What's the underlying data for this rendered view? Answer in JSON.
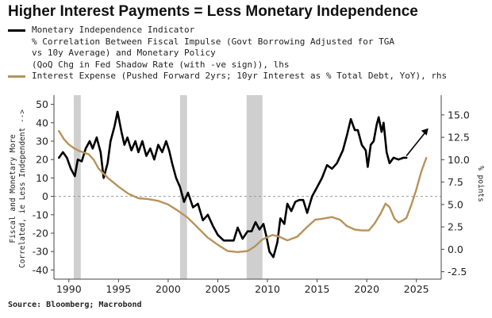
{
  "chart_data": {
    "type": "line",
    "title": "Higher Interest Payments = Less Monetary Independence",
    "source": "Source: Bloomberg; Macrobond",
    "x_ticks": [
      1990,
      1995,
      2000,
      2005,
      2010,
      2015,
      2020,
      2025
    ],
    "xlim": [
      1988.5,
      2027.5
    ],
    "left_axis": {
      "label_line1": "Fiscal and Monetary More",
      "label_line2": "Correlated, ie Less Independent -->",
      "ticks": [
        50,
        40,
        30,
        20,
        10,
        0,
        -10,
        -20,
        -30,
        -40
      ],
      "ylim": [
        -45,
        55
      ]
    },
    "right_axis": {
      "label": "% points",
      "ticks": [
        "15.0",
        "12.5",
        "10.0",
        "7.5",
        "5.0",
        "2.5",
        "0.0",
        "-2.5"
      ],
      "tick_values": [
        15,
        12.5,
        10,
        7.5,
        5,
        2.5,
        0,
        -2.5
      ],
      "ylim": [
        -3.33,
        17.2
      ]
    },
    "shaded_periods": [
      [
        1990.5,
        1991.2
      ],
      [
        2001.2,
        2001.9
      ],
      [
        2007.9,
        2009.5
      ]
    ],
    "series": [
      {
        "name": "Monetary Independence Indicator",
        "legend_lines": [
          "Monetary Independence Indicator",
          "% Correlation Between Fiscal Impulse (Govt Borrowing Adjusted for TGA",
          "vs 10y Average) and Monetary Policy",
          "(QoQ Chg in Fed Shadow Rate (with -ve sign)), lhs"
        ],
        "axis": "left",
        "color": "#000000",
        "points": [
          [
            1989.0,
            21
          ],
          [
            1989.4,
            24
          ],
          [
            1989.8,
            21
          ],
          [
            1990.2,
            15
          ],
          [
            1990.6,
            11
          ],
          [
            1990.9,
            20
          ],
          [
            1991.3,
            19
          ],
          [
            1991.7,
            26
          ],
          [
            1992.1,
            30
          ],
          [
            1992.4,
            26
          ],
          [
            1992.8,
            32
          ],
          [
            1993.2,
            24
          ],
          [
            1993.5,
            10
          ],
          [
            1993.9,
            18
          ],
          [
            1994.2,
            30
          ],
          [
            1994.6,
            38
          ],
          [
            1994.9,
            46
          ],
          [
            1995.3,
            35
          ],
          [
            1995.6,
            28
          ],
          [
            1995.9,
            32
          ],
          [
            1996.3,
            25
          ],
          [
            1996.7,
            30
          ],
          [
            1997.0,
            24
          ],
          [
            1997.4,
            30
          ],
          [
            1997.8,
            22
          ],
          [
            1998.2,
            26
          ],
          [
            1998.6,
            20
          ],
          [
            1999.0,
            28
          ],
          [
            1999.4,
            24
          ],
          [
            1999.8,
            30
          ],
          [
            2000.1,
            25
          ],
          [
            2000.4,
            18
          ],
          [
            2000.8,
            10
          ],
          [
            2001.2,
            5
          ],
          [
            2001.6,
            -3
          ],
          [
            2002.0,
            2
          ],
          [
            2002.5,
            -6
          ],
          [
            2003.0,
            -4
          ],
          [
            2003.5,
            -13
          ],
          [
            2004.0,
            -10
          ],
          [
            2004.5,
            -16
          ],
          [
            2005.0,
            -21
          ],
          [
            2005.6,
            -24
          ],
          [
            2006.1,
            -24
          ],
          [
            2006.6,
            -24
          ],
          [
            2007.0,
            -17
          ],
          [
            2007.5,
            -23
          ],
          [
            2008.0,
            -19
          ],
          [
            2008.4,
            -19
          ],
          [
            2008.8,
            -14
          ],
          [
            2009.2,
            -18
          ],
          [
            2009.6,
            -15
          ],
          [
            2009.9,
            -22
          ],
          [
            2010.2,
            -30
          ],
          [
            2010.6,
            -33
          ],
          [
            2011.0,
            -25
          ],
          [
            2011.3,
            -12
          ],
          [
            2011.7,
            -15
          ],
          [
            2012.0,
            -4
          ],
          [
            2012.4,
            -8
          ],
          [
            2012.8,
            -3
          ],
          [
            2013.2,
            -2
          ],
          [
            2013.6,
            -2
          ],
          [
            2014.0,
            -9
          ],
          [
            2014.5,
            0
          ],
          [
            2015.0,
            5
          ],
          [
            2015.5,
            10
          ],
          [
            2016.0,
            17
          ],
          [
            2016.5,
            15
          ],
          [
            2017.0,
            18
          ],
          [
            2017.6,
            25
          ],
          [
            2018.0,
            33
          ],
          [
            2018.4,
            42
          ],
          [
            2018.8,
            36
          ],
          [
            2019.1,
            36
          ],
          [
            2019.5,
            28
          ],
          [
            2019.9,
            25
          ],
          [
            2020.1,
            16
          ],
          [
            2020.4,
            28
          ],
          [
            2020.7,
            30
          ],
          [
            2021.0,
            39
          ],
          [
            2021.2,
            43
          ],
          [
            2021.5,
            35
          ],
          [
            2021.7,
            40
          ],
          [
            2022.0,
            24
          ],
          [
            2022.3,
            18
          ],
          [
            2022.7,
            21
          ],
          [
            2023.2,
            20
          ],
          [
            2023.7,
            21
          ],
          [
            2024.0,
            21
          ]
        ]
      },
      {
        "name": "Interest Expense (Pushed Forward 2yrs; 10yr Interest as % Total Debt, YoY), rhs",
        "legend_lines": [
          "Interest Expense (Pushed Forward 2yrs; 10yr Interest as % Total Debt, YoY), rhs"
        ],
        "axis": "right",
        "color": "#b8925a",
        "points": [
          [
            1989.0,
            13.2
          ],
          [
            1989.5,
            12.3
          ],
          [
            1990.0,
            11.7
          ],
          [
            1990.5,
            11.3
          ],
          [
            1991.0,
            11.0
          ],
          [
            1991.5,
            10.8
          ],
          [
            1992.0,
            10.6
          ],
          [
            1992.5,
            10.0
          ],
          [
            1993.0,
            9.0
          ],
          [
            1994.0,
            7.9
          ],
          [
            1995.0,
            7.0
          ],
          [
            1996.0,
            6.2
          ],
          [
            1997.0,
            5.7
          ],
          [
            1998.0,
            5.6
          ],
          [
            1999.0,
            5.4
          ],
          [
            2000.0,
            5.0
          ],
          [
            2001.0,
            4.3
          ],
          [
            2002.0,
            3.5
          ],
          [
            2003.0,
            2.4
          ],
          [
            2004.0,
            1.3
          ],
          [
            2005.0,
            0.5
          ],
          [
            2006.0,
            -0.2
          ],
          [
            2007.0,
            -0.3
          ],
          [
            2008.0,
            -0.2
          ],
          [
            2008.7,
            0.3
          ],
          [
            2009.5,
            1.1
          ],
          [
            2010.5,
            1.6
          ],
          [
            2011.2,
            1.4
          ],
          [
            2012.0,
            1.0
          ],
          [
            2013.0,
            1.4
          ],
          [
            2014.0,
            2.5
          ],
          [
            2014.8,
            3.3
          ],
          [
            2015.5,
            3.4
          ],
          [
            2016.5,
            3.6
          ],
          [
            2017.3,
            3.3
          ],
          [
            2018.0,
            2.6
          ],
          [
            2018.8,
            2.2
          ],
          [
            2019.5,
            2.1
          ],
          [
            2020.2,
            2.1
          ],
          [
            2020.8,
            2.9
          ],
          [
            2021.4,
            4.0
          ],
          [
            2021.9,
            5.1
          ],
          [
            2022.3,
            4.7
          ],
          [
            2022.8,
            3.4
          ],
          [
            2023.2,
            3.0
          ],
          [
            2023.6,
            3.2
          ],
          [
            2024.0,
            3.5
          ],
          [
            2024.5,
            5.0
          ],
          [
            2025.0,
            6.7
          ],
          [
            2025.5,
            8.7
          ],
          [
            2026.0,
            10.2
          ]
        ]
      }
    ],
    "annotation": "up-arrow"
  }
}
